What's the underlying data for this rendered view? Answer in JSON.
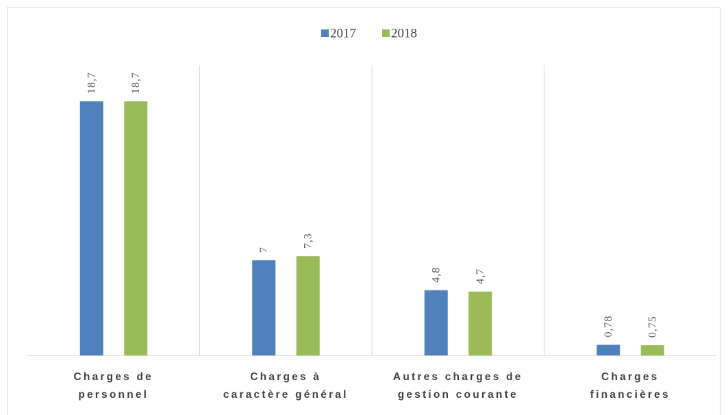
{
  "chart_data": {
    "type": "bar",
    "categories": [
      "Charges de\npersonnel",
      "Charges à\ncaractère général",
      "Autres charges de\ngestion courante",
      "Charges\nfinancières"
    ],
    "series": [
      {
        "name": "2017",
        "color": "#4f81bd",
        "values": [
          18.7,
          7,
          4.8,
          0.78
        ],
        "value_labels": [
          "18,7",
          "7",
          "4,8",
          "0,78"
        ]
      },
      {
        "name": "2018",
        "color": "#9bbb59",
        "values": [
          18.7,
          7.3,
          4.7,
          0.75
        ],
        "value_labels": [
          "18,7",
          "7,3",
          "4,7",
          "0,75"
        ]
      }
    ],
    "legend": "top"
  }
}
